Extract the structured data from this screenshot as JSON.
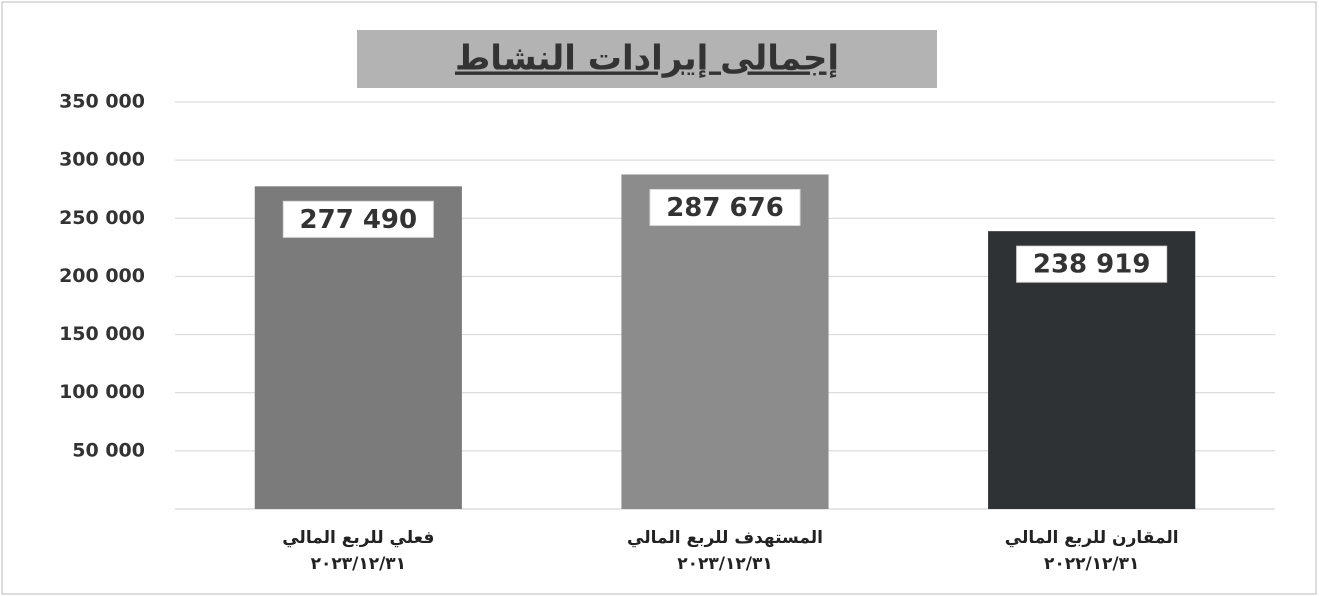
{
  "chart_data": {
    "type": "bar",
    "title": "إجمالى إيرادات النشاط",
    "categories": [
      [
        "فعلي للربع المالي",
        "٢٠٢٣/١٢/٣١"
      ],
      [
        "المستهدف للربع المالي",
        "٢٠٢٣/١٢/٣١"
      ],
      [
        "المقارن للربع المالي",
        "٢٠٢٢/١٢/٣١"
      ]
    ],
    "values": [
      277490,
      287676,
      238919
    ],
    "value_labels": [
      "277 490",
      "287 676",
      "238 919"
    ],
    "colors": [
      "#7b7b7b",
      "#8c8c8c",
      "#2f3234"
    ],
    "ylim": [
      0,
      350000
    ],
    "yticks": [
      {
        "value": 50000,
        "label": "50 000"
      },
      {
        "value": 100000,
        "label": "100 000"
      },
      {
        "value": 150000,
        "label": "150 000"
      },
      {
        "value": 200000,
        "label": "200 000"
      },
      {
        "value": 250000,
        "label": "250 000"
      },
      {
        "value": 300000,
        "label": "300 000"
      },
      {
        "value": 350000,
        "label": "350 000"
      }
    ],
    "grid": true
  }
}
